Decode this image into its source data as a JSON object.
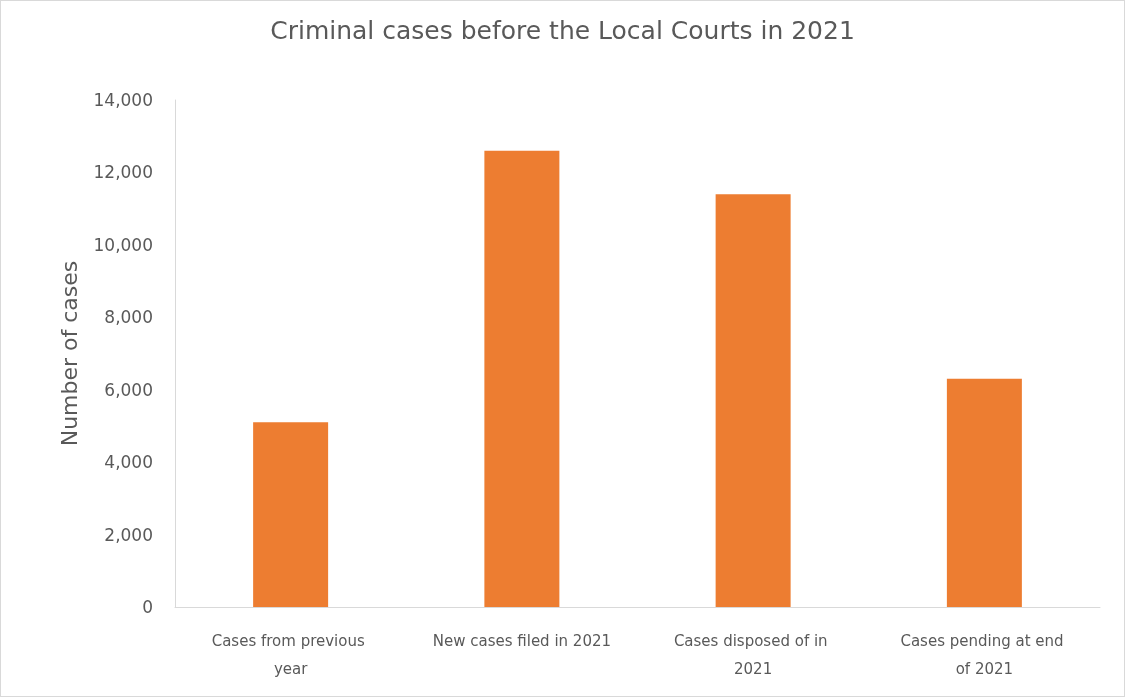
{
  "chart_data": {
    "type": "bar",
    "title": "Criminal cases before the Local Courts in 2021",
    "ylabel": "Number of cases",
    "categories": [
      "Cases from previous year",
      "New cases filed in 2021",
      "Cases disposed of in 2021",
      "Cases pending at end of 2021"
    ],
    "values": [
      5100,
      12600,
      11400,
      6300
    ],
    "color": "#ed7d31",
    "ylim": [
      0,
      14000
    ],
    "yticks": [
      0,
      {
        "value": 2000,
        "label": "2,000"
      },
      {
        "value": 4000,
        "label": "4,000"
      },
      {
        "value": 6000,
        "label": "6,000"
      },
      {
        "value": 8000,
        "label": "8,000"
      },
      {
        "value": 10000,
        "label": "10,000"
      },
      {
        "value": 12000,
        "label": "12,000"
      },
      {
        "value": 14000,
        "label": "14,000"
      }
    ],
    "grid": false
  }
}
